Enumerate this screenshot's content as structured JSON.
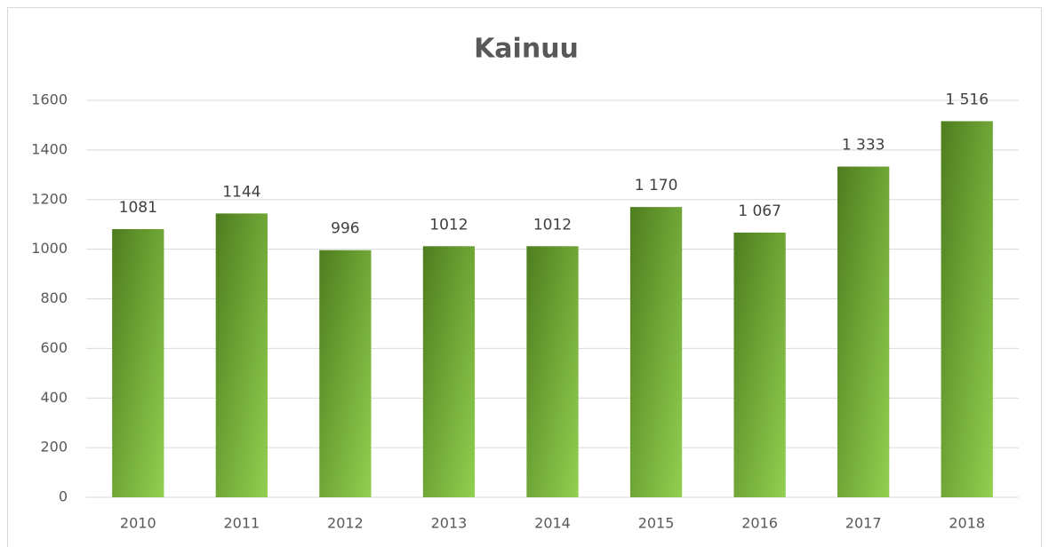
{
  "chart_data": {
    "type": "bar",
    "title": "Kainuu",
    "categories": [
      "2010",
      "2011",
      "2012",
      "2013",
      "2014",
      "2015",
      "2016",
      "2017",
      "2018"
    ],
    "values": [
      1081,
      1144,
      996,
      1012,
      1012,
      1170,
      1067,
      1333,
      1516
    ],
    "value_labels": [
      "1081",
      "1144",
      "996",
      "1012",
      "1012",
      "1 170",
      "1 067",
      "1 333",
      "1 516"
    ],
    "color": [
      "#4e7d1e",
      "#92d050"
    ],
    "ylim": [
      0,
      1600
    ],
    "yticks": [
      0,
      200,
      400,
      600,
      800,
      1000,
      1200,
      1400,
      1600
    ],
    "grid": true
  }
}
